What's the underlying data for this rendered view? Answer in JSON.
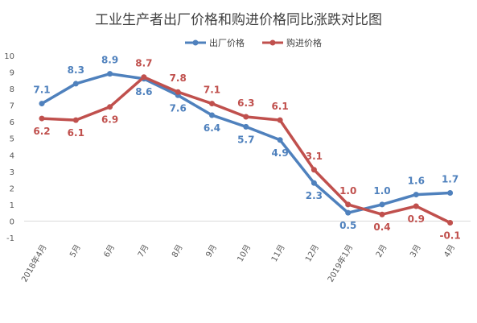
{
  "chart_data": {
    "type": "line",
    "title": "工业生产者出厂价格和购进价格同比涨跌对比图",
    "categories": [
      "2018年4月",
      "5月",
      "6月",
      "7月",
      "8月",
      "9月",
      "10月",
      "11月",
      "12月",
      "2019年1月",
      "2月",
      "3月",
      "4月"
    ],
    "ylim": [
      -1,
      10
    ],
    "yticks": [
      -1,
      0,
      1,
      2,
      3,
      4,
      5,
      6,
      7,
      8,
      9,
      10
    ],
    "grid": false,
    "legend_position": "top",
    "series": [
      {
        "name": "出厂价格",
        "color": "#4f81bd",
        "values": [
          7.1,
          8.3,
          8.9,
          8.6,
          7.6,
          6.4,
          5.7,
          4.9,
          2.3,
          0.5,
          1.0,
          1.6,
          1.7
        ]
      },
      {
        "name": "购进价格",
        "color": "#c0504d",
        "values": [
          6.2,
          6.1,
          6.9,
          8.7,
          7.8,
          7.1,
          6.3,
          6.1,
          3.1,
          1.0,
          0.4,
          0.9,
          -0.1
        ]
      }
    ]
  }
}
